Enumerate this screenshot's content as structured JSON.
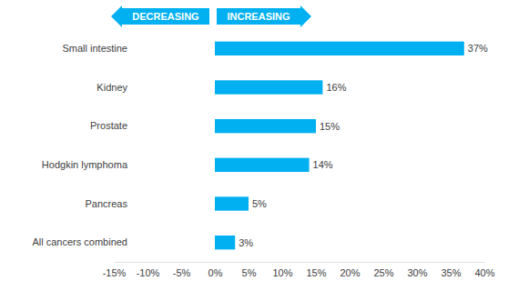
{
  "chart_data": {
    "type": "bar",
    "orientation": "horizontal",
    "categories": [
      "Small intestine",
      "Kidney",
      "Prostate",
      "Hodgkin lymphoma",
      "Pancreas",
      "All cancers combined"
    ],
    "values": [
      37,
      16,
      15,
      14,
      5,
      3
    ],
    "value_labels": [
      "37%",
      "16%",
      "15%",
      "14%",
      "5%",
      "3%"
    ],
    "data_labels": true,
    "color": "#00b0f0",
    "xlim": [
      -15,
      40
    ],
    "xticks": [
      {
        "value": -15,
        "label": "-15%"
      },
      {
        "value": -10,
        "label": "-10%"
      },
      {
        "value": -5,
        "label": "-5%"
      },
      {
        "value": 0,
        "label": "0%"
      },
      {
        "value": 5,
        "label": "5%"
      },
      {
        "value": 10,
        "label": "10%"
      },
      {
        "value": 15,
        "label": "15%"
      },
      {
        "value": 20,
        "label": "20%"
      },
      {
        "value": 25,
        "label": "25%"
      },
      {
        "value": 30,
        "label": "30%"
      },
      {
        "value": 35,
        "label": "35%"
      },
      {
        "value": 40,
        "label": "40%"
      }
    ],
    "grid": false,
    "annotations": [
      "DECREASING",
      "INCREASING"
    ]
  }
}
